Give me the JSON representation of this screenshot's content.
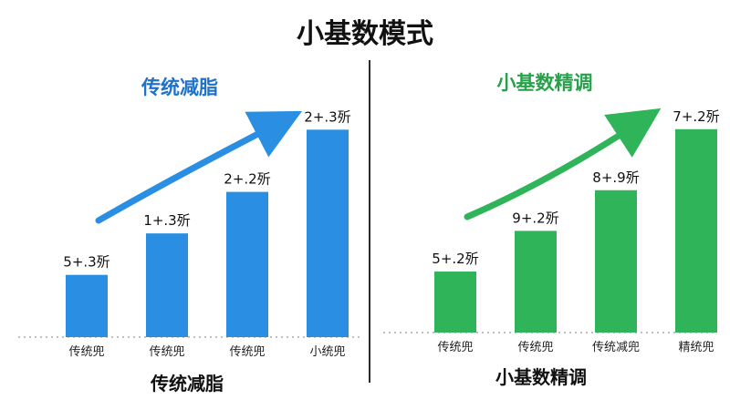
{
  "title": "小基数模式",
  "colors": {
    "left_accent": "#1f72c9",
    "left_bar": "#2a8ee2",
    "right_accent": "#27a24b",
    "right_bar": "#2fb45a"
  },
  "chart_data": [
    {
      "type": "bar",
      "title": "传统减脂",
      "xlabel": "传统减脂",
      "ylabel": "",
      "categories": [
        "传统兜",
        "传统兜",
        "传统兜",
        "小统兜"
      ],
      "values": [
        1.5,
        2.5,
        3.5,
        5.0
      ],
      "data_labels": [
        "5+.3歽",
        "1+.3歽",
        "2+.2歽",
        "2+.3歽"
      ],
      "ylim": [
        0,
        5.6
      ],
      "grid": false,
      "trend_arrow": true
    },
    {
      "type": "bar",
      "title": "小基数精调",
      "xlabel": "小基数精调",
      "ylabel": "",
      "categories": [
        "传统兜",
        "传统兜",
        "传统减兜",
        "精统兜"
      ],
      "values": [
        1.5,
        2.5,
        3.5,
        5.0
      ],
      "data_labels": [
        "5+.2歽",
        "9+.2歽",
        "8+.9歽",
        "7+.2歽"
      ],
      "ylim": [
        0,
        5.6
      ],
      "grid": false,
      "trend_arrow": true
    }
  ]
}
